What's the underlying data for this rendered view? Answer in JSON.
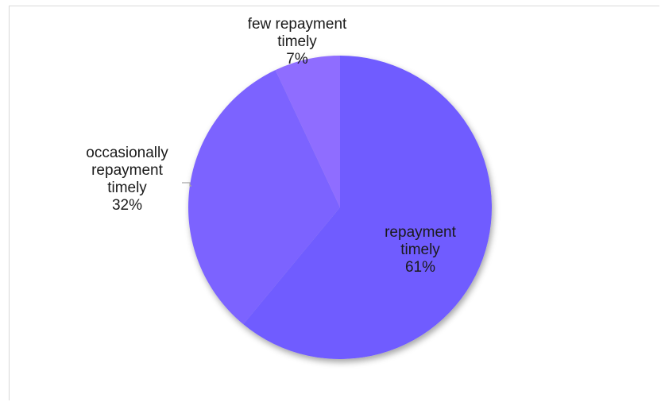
{
  "chart_data": {
    "type": "pie",
    "title": "",
    "start_angle_deg": 0,
    "direction": "clockwise",
    "slices": [
      {
        "label_lines": [
          "repayment",
          "timely"
        ],
        "percent_label": "61%",
        "value": 61,
        "color": "#6f5bff"
      },
      {
        "label_lines": [
          "occasionally",
          "repayment",
          "timely"
        ],
        "percent_label": "32%",
        "value": 32,
        "color": "#7c63ff"
      },
      {
        "label_lines": [
          "few repayment",
          "timely"
        ],
        "percent_label": "7%",
        "value": 7,
        "color": "#8f6dff"
      }
    ],
    "legend": "none",
    "colors": {
      "border": "#d9d9d9",
      "leader_line": "#a6a6a6",
      "text": "#1a1a1a"
    }
  }
}
